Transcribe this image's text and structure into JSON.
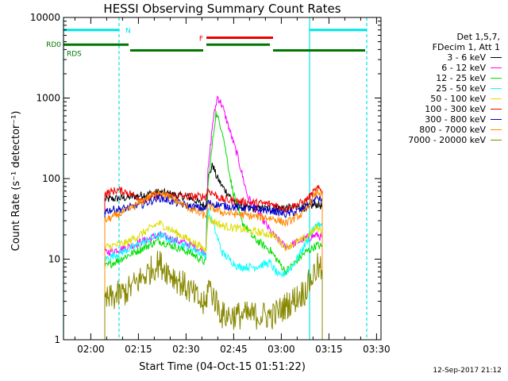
{
  "chart_data": {
    "type": "line",
    "title": "HESSI Observing Summary Count Rates",
    "xlabel": "Start Time (04-Oct-15 01:51:22)",
    "ylabel": "Count Rate (s⁻¹ detector⁻¹)",
    "yscale": "log",
    "ylim": [
      1,
      10000
    ],
    "xlim_min_after_0151": [
      0,
      100
    ],
    "x_tick_labels": [
      "02:00",
      "02:15",
      "02:30",
      "02:45",
      "03:00",
      "03:15",
      "03:30"
    ],
    "x_ticks_min": [
      8.6,
      23.6,
      38.6,
      53.6,
      68.6,
      83.6,
      98.6
    ],
    "y_tick_labels": [
      "1",
      "10",
      "100",
      "1000",
      "10000"
    ],
    "y_ticks": [
      1,
      10,
      100,
      1000,
      10000
    ],
    "legend": {
      "header1": "Det 1,5,7,",
      "header2": "FDecim 1, Att 1",
      "entries": [
        {
          "label": "3 - 6 keV",
          "color": "#000000"
        },
        {
          "label": "6 - 12 keV",
          "color": "#ff00ff"
        },
        {
          "label": "12 - 25 keV",
          "color": "#00dd00"
        },
        {
          "label": "25 - 50 keV",
          "color": "#00ffff"
        },
        {
          "label": "50 - 100 keV",
          "color": "#dddd00"
        },
        {
          "label": "100 - 300 keV",
          "color": "#ee0000"
        },
        {
          "label": "300 - 800 keV",
          "color": "#0000cc"
        },
        {
          "label": "800 - 7000 keV",
          "color": "#ff8800"
        },
        {
          "label": "7000 - 20000 keV",
          "color": "#888800"
        }
      ]
    },
    "flags": [
      {
        "label": "N",
        "color": "#00e5e5",
        "value": 7000,
        "segments": [
          [
            0,
            17.5
          ],
          [
            77.5,
            95.5
          ]
        ]
      },
      {
        "label": "F",
        "color": "#ee0000",
        "value": 5600,
        "segments": [
          [
            45,
            66
          ]
        ]
      },
      {
        "label": "RD0",
        "color": "#007700",
        "value": 4600,
        "segments": [
          [
            0,
            20.5
          ],
          [
            45,
            65
          ]
        ]
      },
      {
        "label": "RDS",
        "color": "#007700",
        "value": 3900,
        "segments": [
          [
            21,
            44
          ],
          [
            66,
            95
          ]
        ]
      }
    ],
    "night_boundaries_min": [
      0,
      17.5,
      77.5,
      95.5
    ],
    "series": [
      {
        "name": "3 - 6 keV",
        "color": "#000000",
        "x": [
          13,
          20,
          30,
          40,
          44.8,
          45.5,
          47,
          48,
          50,
          55,
          60,
          66,
          72,
          76,
          80,
          81.5
        ],
        "y": [
          55,
          58,
          68,
          58,
          45,
          100,
          150,
          110,
          80,
          45,
          42,
          43,
          44,
          44,
          48,
          45
        ]
      },
      {
        "name": "6 - 12 keV",
        "color": "#ff00ff",
        "x": [
          13,
          20,
          30,
          40,
          44.8,
          45.5,
          47,
          48.5,
          50,
          55,
          58,
          63,
          66,
          70,
          76,
          80,
          81.5
        ],
        "y": [
          12,
          14,
          20,
          15,
          12,
          120,
          500,
          1050,
          800,
          180,
          60,
          30,
          20,
          14,
          18,
          20,
          18
        ]
      },
      {
        "name": "12 - 25 keV",
        "color": "#00dd00",
        "x": [
          13,
          20,
          30,
          40,
          44.8,
          45.5,
          47,
          48,
          50,
          53,
          56,
          60,
          65,
          70,
          76,
          80,
          81.5
        ],
        "y": [
          8,
          11,
          17,
          12,
          9,
          80,
          300,
          650,
          400,
          80,
          30,
          18,
          13,
          7,
          12,
          15,
          14
        ]
      },
      {
        "name": "25 - 50 keV",
        "color": "#00ffff",
        "x": [
          13,
          20,
          30,
          40,
          44.8,
          45.5,
          47,
          50,
          55,
          60,
          65,
          68,
          72,
          76,
          80,
          81.5
        ],
        "y": [
          10,
          13,
          20,
          14,
          11,
          40,
          28,
          12,
          8,
          8,
          9,
          6,
          8,
          15,
          28,
          25
        ]
      },
      {
        "name": "50 - 100 keV",
        "color": "#dddd00",
        "x": [
          13,
          20,
          30,
          40,
          44.8,
          45.5,
          50,
          55,
          60,
          66,
          70,
          76,
          80,
          81.5
        ],
        "y": [
          14,
          16,
          28,
          17,
          13,
          32,
          26,
          24,
          22,
          20,
          14,
          18,
          25,
          22
        ]
      },
      {
        "name": "100 - 300 keV",
        "color": "#ee0000",
        "x": [
          13,
          17,
          20,
          25,
          30,
          40,
          44.8,
          45.5,
          50,
          55,
          60,
          66,
          70,
          76,
          80,
          81.5
        ],
        "y": [
          65,
          72,
          68,
          55,
          62,
          60,
          60,
          72,
          55,
          52,
          50,
          48,
          42,
          52,
          75,
          70
        ]
      },
      {
        "name": "300 - 800 keV",
        "color": "#0000cc",
        "x": [
          13,
          20,
          25,
          30,
          40,
          44.8,
          45.5,
          50,
          55,
          60,
          66,
          70,
          76,
          80,
          81.5
        ],
        "y": [
          40,
          43,
          48,
          58,
          45,
          42,
          50,
          46,
          44,
          42,
          40,
          36,
          42,
          58,
          55
        ]
      },
      {
        "name": "800 - 7000 keV",
        "color": "#ff8800",
        "x": [
          13,
          20,
          30,
          40,
          44.8,
          45.5,
          50,
          55,
          60,
          66,
          70,
          76,
          80,
          81.5
        ],
        "y": [
          30,
          40,
          70,
          42,
          34,
          45,
          38,
          36,
          34,
          32,
          28,
          38,
          70,
          62
        ]
      },
      {
        "name": "7000 - 20000 keV",
        "color": "#888800",
        "x": [
          13,
          20,
          30,
          40,
          44.8,
          45.5,
          50,
          55,
          60,
          65,
          66,
          72,
          76,
          80,
          81.5
        ],
        "y": [
          3,
          4,
          9,
          4,
          2.5,
          5,
          2,
          2,
          2,
          2,
          2,
          3,
          4,
          8,
          7
        ]
      }
    ]
  },
  "timestamp": "12-Sep-2017 21:12"
}
